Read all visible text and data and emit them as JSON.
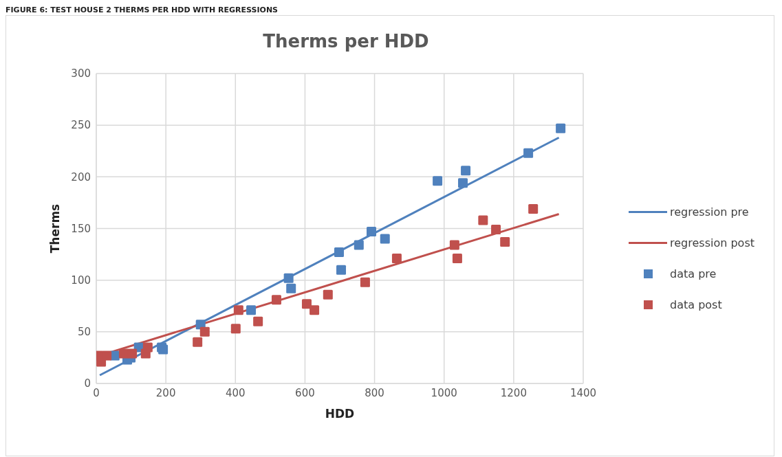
{
  "chart_data": {
    "type": "scatter",
    "title": "Therms per HDD",
    "xlabel": "HDD",
    "ylabel": "Therms",
    "annotations": [
      "FIGURE 6: TEST HOUSE 2 THERMS PER HDD WITH REGRESSIONS"
    ],
    "xlim": [
      0,
      1400
    ],
    "xticks": [
      0,
      200,
      400,
      600,
      800,
      1000,
      1200,
      1400
    ],
    "ylim": [
      0,
      300
    ],
    "yticks": [
      0,
      50,
      100,
      150,
      200,
      250,
      300
    ],
    "grid": true,
    "legend": "right",
    "series": [
      {
        "name": "regression pre",
        "type": "line",
        "marker": "none",
        "line_style": "solid",
        "color": "#4f81bd",
        "x": [
          10,
          1330
        ],
        "values": [
          8,
          238
        ]
      },
      {
        "name": "regression post",
        "type": "line",
        "marker": "none",
        "line_style": "solid",
        "color": "#c0504d",
        "x": [
          10,
          1330
        ],
        "values": [
          27,
          164
        ]
      },
      {
        "name": "data pre",
        "marker": "square",
        "color": "#4f81bd",
        "x": [
          53,
          89,
          99,
          122,
          188,
          192,
          300,
          445,
          553,
          560,
          698,
          704,
          755,
          791,
          830,
          981,
          1054,
          1062,
          1242,
          1335
        ],
        "values": [
          27,
          23,
          25,
          35,
          35,
          33,
          57,
          71,
          102,
          92,
          127,
          110,
          134,
          147,
          140,
          196,
          194,
          206,
          223,
          247
        ]
      },
      {
        "name": "data post",
        "marker": "square",
        "color": "#c0504d",
        "x": [
          6,
          14,
          30,
          79,
          103,
          142,
          148,
          291,
          312,
          401,
          409,
          465,
          518,
          605,
          627,
          666,
          773,
          864,
          1030,
          1038,
          1112,
          1149,
          1175,
          1256
        ],
        "values": [
          27,
          21,
          27,
          29,
          29,
          29,
          35,
          40,
          50,
          53,
          71,
          60,
          81,
          77,
          71,
          86,
          98,
          121,
          134,
          121,
          158,
          149,
          137,
          169
        ]
      }
    ]
  }
}
